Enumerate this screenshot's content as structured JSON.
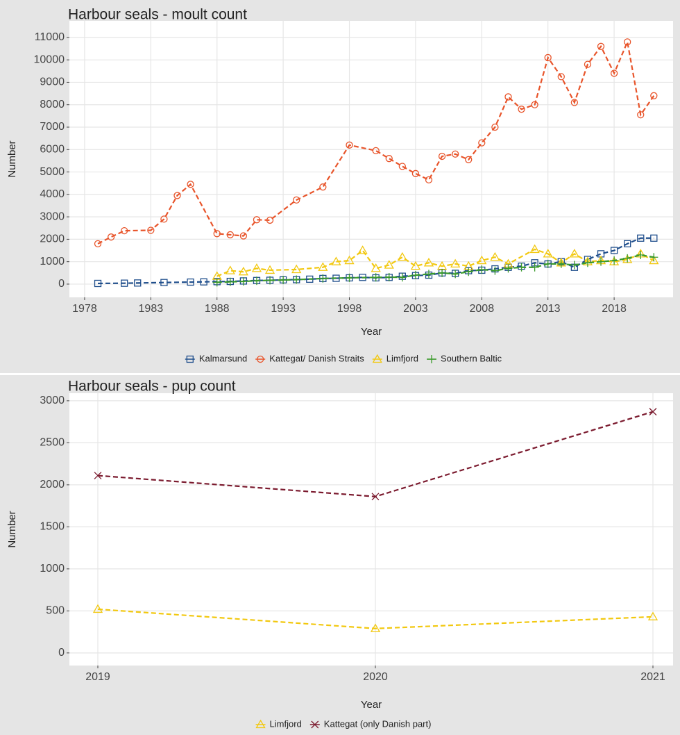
{
  "chart_data": [
    {
      "type": "line",
      "title": "Harbour seals - moult count",
      "xlabel": "Year",
      "ylabel": "Number",
      "xlim": [
        1976.85,
        2022.45
      ],
      "xticks": [
        1978,
        1983,
        1988,
        1993,
        1998,
        2003,
        2008,
        2013,
        2018
      ],
      "ylim": [
        -590,
        11740
      ],
      "yticks": [
        0,
        1000,
        2000,
        3000,
        4000,
        5000,
        6000,
        7000,
        8000,
        9000,
        10000,
        11000
      ],
      "grid": true,
      "legend": "bottom",
      "series": [
        {
          "name": "Kalmarsund",
          "color": "#1f4e8c",
          "marker": "square",
          "x": [
            1979,
            1981,
            1982,
            1984,
            1986,
            1987,
            1988,
            1989,
            1990,
            1991,
            1992,
            1993,
            1994,
            1995,
            1996,
            1997,
            1998,
            1999,
            2000,
            2001,
            2002,
            2003,
            2004,
            2005,
            2006,
            2007,
            2008,
            2009,
            2010,
            2011,
            2012,
            2013,
            2014,
            2015,
            2016,
            2017,
            2018,
            2019,
            2020,
            2021
          ],
          "values": [
            30,
            40,
            50,
            70,
            90,
            100,
            110,
            120,
            140,
            160,
            170,
            190,
            200,
            220,
            250,
            260,
            280,
            300,
            280,
            300,
            350,
            380,
            400,
            500,
            480,
            600,
            620,
            680,
            750,
            800,
            950,
            900,
            1000,
            750,
            1100,
            1350,
            1500,
            1800,
            2050,
            2050
          ]
        },
        {
          "name": "Kattegat/ Danish Straits",
          "color": "#e8542a",
          "marker": "circle",
          "x": [
            1979,
            1980,
            1981,
            1983,
            1984,
            1985,
            1986,
            1988,
            1989,
            1990,
            1991,
            1992,
            1994,
            1996,
            1998,
            2000,
            2001,
            2002,
            2003,
            2004,
            2005,
            2006,
            2007,
            2008,
            2009,
            2010,
            2011,
            2012,
            2013,
            2014,
            2015,
            2016,
            2017,
            2018,
            2019,
            2020,
            2021
          ],
          "values": [
            1800,
            2100,
            2380,
            2400,
            2900,
            3950,
            4450,
            2250,
            2200,
            2150,
            2870,
            2850,
            3750,
            4330,
            6200,
            5950,
            5600,
            5250,
            4930,
            4650,
            5700,
            5800,
            5550,
            6300,
            7000,
            8350,
            7800,
            8000,
            10100,
            9250,
            8100,
            9800,
            10600,
            9400,
            10800,
            7550,
            8400
          ]
        },
        {
          "name": "Limfjord",
          "color": "#f2c80f",
          "marker": "triangle",
          "x": [
            1988,
            1989,
            1990,
            1991,
            1992,
            1994,
            1996,
            1997,
            1998,
            1999,
            2000,
            2001,
            2002,
            2003,
            2004,
            2005,
            2006,
            2007,
            2008,
            2009,
            2010,
            2012,
            2013,
            2014,
            2015,
            2016,
            2017,
            2018,
            2019,
            2020,
            2021
          ],
          "values": [
            350,
            600,
            550,
            700,
            620,
            650,
            750,
            1000,
            1050,
            1500,
            700,
            850,
            1200,
            800,
            950,
            800,
            900,
            800,
            1050,
            1200,
            900,
            1550,
            1350,
            950,
            1350,
            1000,
            1050,
            1000,
            1100,
            1350,
            1050
          ]
        },
        {
          "name": "Southern Baltic",
          "color": "#3a9a2a",
          "marker": "plus",
          "x": [
            1988,
            1989,
            1990,
            1991,
            1992,
            1993,
            1994,
            1996,
            1998,
            2000,
            2001,
            2002,
            2003,
            2004,
            2005,
            2006,
            2007,
            2008,
            2009,
            2010,
            2011,
            2012,
            2013,
            2014,
            2015,
            2016,
            2017,
            2018,
            2019,
            2020,
            2021
          ],
          "values": [
            80,
            100,
            120,
            150,
            170,
            180,
            200,
            250,
            280,
            300,
            310,
            300,
            400,
            450,
            500,
            450,
            550,
            650,
            600,
            700,
            750,
            750,
            900,
            900,
            850,
            950,
            1000,
            1050,
            1150,
            1300,
            1200
          ]
        }
      ]
    },
    {
      "type": "line",
      "title": "Harbour seals - pup count",
      "xlabel": "Year",
      "ylabel": "Number",
      "xlim": [
        2018.8975,
        2021.0725
      ],
      "xticks": [
        2019,
        2020,
        2021
      ],
      "ylim": [
        -150,
        3090
      ],
      "yticks": [
        0,
        500,
        1000,
        1500,
        2000,
        2500,
        3000
      ],
      "grid": true,
      "legend": "bottom",
      "series": [
        {
          "name": "Limfjord",
          "color": "#f2c80f",
          "marker": "triangle",
          "x": [
            2019,
            2020,
            2021
          ],
          "values": [
            520,
            290,
            430
          ]
        },
        {
          "name": "Kattegat (only Danish part)",
          "color": "#7b1a2e",
          "marker": "cross",
          "x": [
            2019,
            2020,
            2021
          ],
          "values": [
            2110,
            1860,
            2870
          ]
        }
      ]
    }
  ]
}
